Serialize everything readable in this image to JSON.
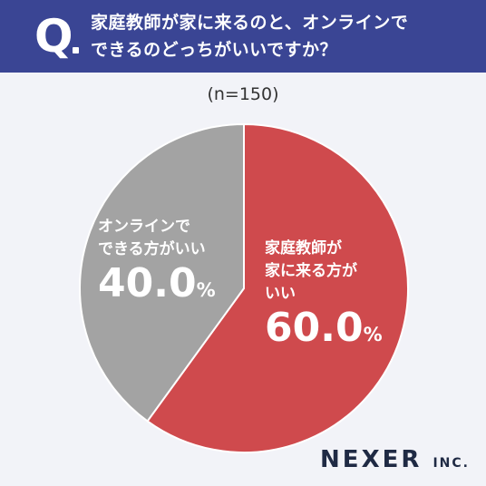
{
  "question": {
    "mark": "Q",
    "line1": "家庭教師が家に来るのと、オンラインで",
    "line2": "できるのどっちがいいですか？"
  },
  "sample_label": "(n=150)",
  "logo": {
    "main": "NEXER",
    "suffix": "INC."
  },
  "colors": {
    "header": "#3a4594",
    "slice_home": "#cf4a4d",
    "slice_online": "#a3a3a3"
  },
  "chart_data": {
    "type": "pie",
    "categories": [
      "家庭教師が家に来る方がいい",
      "オンラインでできる方がいい"
    ],
    "values": [
      60.0,
      40.0
    ],
    "labels": {
      "home": {
        "line1": "家庭教師が",
        "line2": "家に来る方が",
        "line3": "いい",
        "pct": "60.0",
        "unit": "%"
      },
      "online": {
        "line1": "オンラインで",
        "line2": "できる方がいい",
        "pct": "40.0",
        "unit": "%"
      }
    }
  }
}
